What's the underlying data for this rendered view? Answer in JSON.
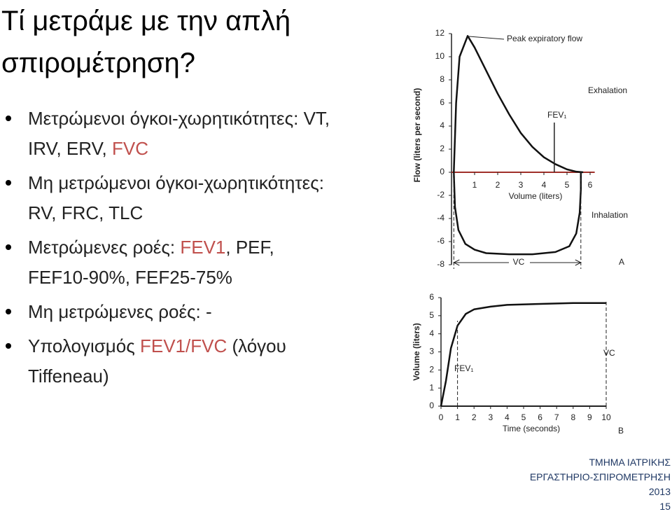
{
  "title": "Τί μετράμε με την απλή σπιρομέτρηση?",
  "bullets": [
    [
      {
        "text": "Μετρώμενοι όγκοι-χωρητικότητες: VT, IRV, ERV, "
      },
      {
        "text": "FVC",
        "color": "#c0504d"
      }
    ],
    [
      {
        "text": "Μη μετρώμενοι όγκοι-χωρητικότητες: RV, FRC, TLC"
      }
    ],
    [
      {
        "text": "Μετρώμενες ροές: "
      },
      {
        "text": "FEV1",
        "color": "#c0504d"
      },
      {
        "text": ", PEF, FEF10-90%, FEF25-75%"
      }
    ],
    [
      {
        "text": "Μη μετρώμενες ροές: -"
      }
    ],
    [
      {
        "text": "Υπολογισμός "
      },
      {
        "text": "FEV1/FVC",
        "color": "#c0504d"
      },
      {
        "text": " (λόγου Tiffeneau)"
      }
    ]
  ],
  "chart_data": [
    {
      "type": "line",
      "panel_label": "A",
      "xlabel": "Volume (liters)",
      "ylabel": "Flow (liters per second)",
      "xlim": [
        0,
        6.2
      ],
      "ylim": [
        -8,
        12
      ],
      "xticks": [
        1,
        2,
        3,
        4,
        5,
        6
      ],
      "yticks": [
        -8,
        -6,
        -4,
        -2,
        0,
        2,
        4,
        6,
        8,
        10,
        12
      ],
      "annotations": {
        "peak": "Peak expiratory flow",
        "exhalation": "Exhalation",
        "fev1": "FEV₁",
        "inhalation": "Inhalation",
        "vc": "VC"
      },
      "markers": {
        "fev1": 4.45,
        "vc": [
          0.1,
          5.6
        ]
      },
      "series": [
        {
          "color": "#111111",
          "x": [
            0.1,
            0.2,
            0.35,
            0.7,
            1,
            1.5,
            2,
            2.5,
            3,
            3.5,
            4,
            4.5,
            5,
            5.4,
            5.7
          ],
          "values": [
            0,
            6,
            10,
            11.8,
            10.8,
            8.8,
            6.8,
            5,
            3.4,
            2.2,
            1.3,
            0.7,
            0.25,
            0.05,
            0
          ]
        },
        {
          "color": "#111111",
          "x": [
            0.1,
            0.15,
            0.3,
            0.6,
            1,
            1.5,
            2.5,
            3.5,
            4.5,
            5.1,
            5.4,
            5.55,
            5.6,
            5.6
          ],
          "values": [
            0,
            -3,
            -5,
            -6.2,
            -6.7,
            -7,
            -7.1,
            -7.1,
            -6.9,
            -6.4,
            -5.3,
            -3.5,
            -1.5,
            0
          ]
        }
      ]
    },
    {
      "type": "line",
      "panel_label": "B",
      "xlabel": "Time (seconds)",
      "ylabel": "Volume (liters)",
      "xlim": [
        0,
        10
      ],
      "ylim": [
        0,
        6
      ],
      "xticks": [
        0,
        1,
        2,
        3,
        4,
        5,
        6,
        7,
        8,
        9,
        10
      ],
      "yticks": [
        0,
        1,
        2,
        3,
        4,
        5,
        6
      ],
      "annotations": {
        "fev1": "FEV₁",
        "vc": "VC"
      },
      "markers": {
        "fev1": 1,
        "vc": 10
      },
      "series": [
        {
          "color": "#111111",
          "x": [
            0,
            0.3,
            0.6,
            1,
            1.5,
            2,
            3,
            4,
            6,
            8,
            10
          ],
          "values": [
            0,
            1.4,
            3.2,
            4.45,
            5.1,
            5.35,
            5.5,
            5.6,
            5.65,
            5.7,
            5.7
          ]
        }
      ]
    }
  ],
  "footer": [
    "ΤΜΗΜΑ ΙΑΤΡΙΚΗΣ",
    "ΕΡΓΑΣΤΗΡΙΟ-ΣΠΙΡΟΜΕΤΡΗΣΗ",
    "2013",
    "15"
  ]
}
